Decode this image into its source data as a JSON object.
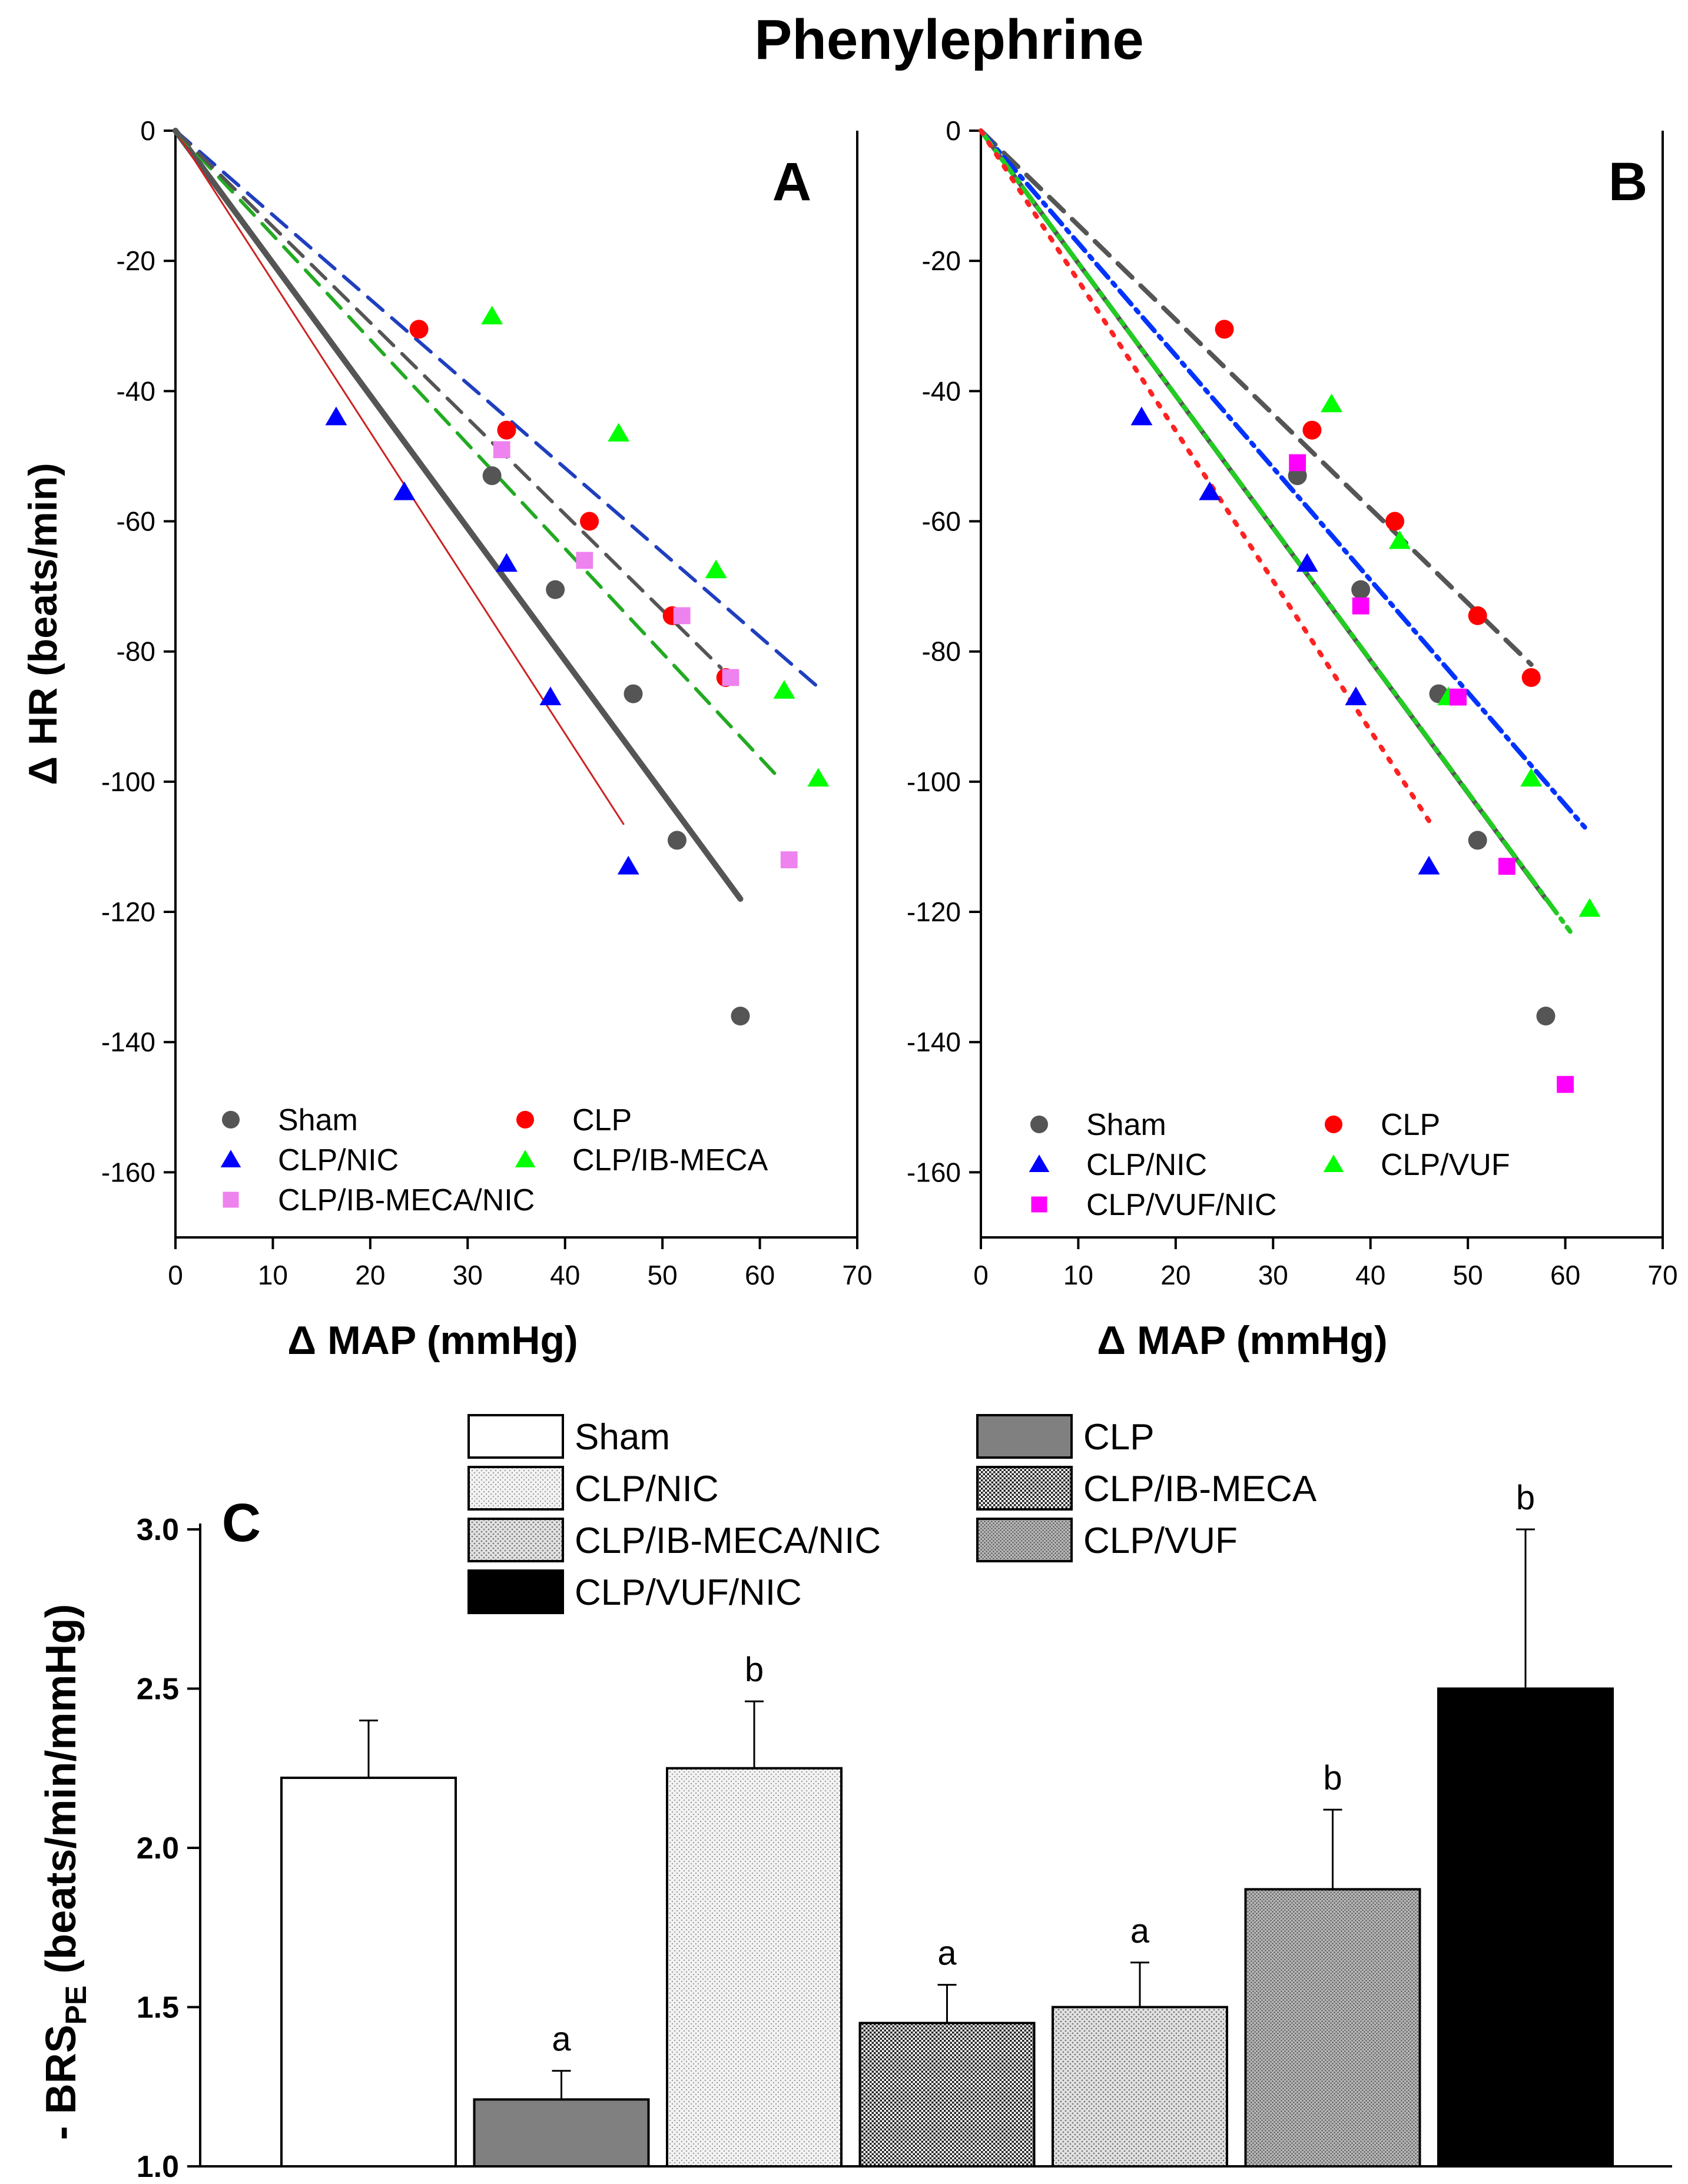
{
  "figure_title": "Phenylephrine",
  "chart_data": [
    {
      "id": "A",
      "panel_label": "A",
      "type": "scatter",
      "xlabel": "Δ MAP (mmHg)",
      "ylabel": "Δ HR (beats/min)",
      "xlim": [
        0,
        70
      ],
      "ylim": [
        -170,
        0
      ],
      "xticks": [
        0,
        10,
        20,
        30,
        40,
        50,
        60,
        70
      ],
      "yticks": [
        0,
        -20,
        -40,
        -60,
        -80,
        -100,
        -120,
        -140,
        -160
      ],
      "legend_position": "bottom-left",
      "series": [
        {
          "name": "Sham",
          "marker": "circle",
          "color": "#555555",
          "points": [
            [
              32.5,
              -53
            ],
            [
              39,
              -70.5
            ],
            [
              47,
              -86.5
            ],
            [
              51.5,
              -109
            ],
            [
              58,
              -136
            ]
          ],
          "fit": {
            "x": [
              0,
              58
            ],
            "y": [
              0,
              -118
            ],
            "color": "#555555",
            "style": "solid",
            "width": 10
          }
        },
        {
          "name": "CLP",
          "marker": "circle",
          "color": "#ff0000",
          "points": [
            [
              25,
              -30.5
            ],
            [
              34,
              -46
            ],
            [
              42.5,
              -60
            ],
            [
              51,
              -74.5
            ],
            [
              56.5,
              -84
            ]
          ],
          "fit": {
            "x": [
              0,
              66
            ],
            "y": [
              0,
              -85.5
            ],
            "color": "#1f3fbf",
            "style": "dashed",
            "width": 6
          }
        },
        {
          "name": "CLP/NIC",
          "marker": "triangle",
          "color": "#0000ff",
          "points": [
            [
              16.5,
              -44
            ],
            [
              23.5,
              -55.5
            ],
            [
              34,
              -66.5
            ],
            [
              38.5,
              -87
            ],
            [
              46.5,
              -113
            ]
          ],
          "fit": {
            "x": [
              0,
              46
            ],
            "y": [
              0,
              -106.5
            ],
            "color": "#cc2222",
            "style": "solid",
            "width": 3
          }
        },
        {
          "name": "CLP/IB-MECA",
          "marker": "triangle",
          "color": "#00ff00",
          "points": [
            [
              32.5,
              -28.5
            ],
            [
              45.5,
              -46.5
            ],
            [
              55.5,
              -67.5
            ],
            [
              62.5,
              -86
            ],
            [
              66,
              -99.5
            ]
          ],
          "fit": {
            "x": [
              0,
              62
            ],
            "y": [
              0,
              -99.5
            ],
            "color": "#22aa22",
            "style": "dashed",
            "width": 6
          }
        },
        {
          "name": "CLP/IB-MECA/NIC",
          "marker": "square",
          "color": "#ee82ee",
          "points": [
            [
              33.5,
              -49
            ],
            [
              42,
              -66
            ],
            [
              52,
              -74.5
            ],
            [
              57,
              -84
            ],
            [
              63,
              -112
            ]
          ],
          "fit": {
            "x": [
              0,
              56
            ],
            "y": [
              0,
              -82.5
            ],
            "color": "#555555",
            "style": "dashed",
            "width": 6
          }
        }
      ]
    },
    {
      "id": "B",
      "panel_label": "B",
      "type": "scatter",
      "xlabel": "Δ MAP (mmHg)",
      "ylabel": "",
      "xlim": [
        0,
        70
      ],
      "ylim": [
        -170,
        0
      ],
      "xticks": [
        0,
        10,
        20,
        30,
        40,
        50,
        60,
        70
      ],
      "yticks": [
        0,
        -20,
        -40,
        -60,
        -80,
        -100,
        -120,
        -140,
        -160
      ],
      "legend_position": "bottom-left",
      "series": [
        {
          "name": "Sham",
          "marker": "circle",
          "color": "#555555",
          "points": [
            [
              32.5,
              -53
            ],
            [
              39,
              -70.5
            ],
            [
              47,
              -86.5
            ],
            [
              51,
              -109
            ],
            [
              58,
              -136
            ]
          ],
          "fit": {
            "x": [
              0,
              58
            ],
            "y": [
              0,
              -118
            ],
            "color": "#555555",
            "style": "solid",
            "width": 8
          }
        },
        {
          "name": "CLP",
          "marker": "circle",
          "color": "#ff0000",
          "points": [
            [
              25,
              -30.5
            ],
            [
              34,
              -46
            ],
            [
              42.5,
              -60
            ],
            [
              51,
              -74.5
            ],
            [
              56.5,
              -84
            ]
          ],
          "fit": {
            "x": [
              0,
              56.5
            ],
            "y": [
              0,
              -82
            ],
            "color": "#555555",
            "style": "dashed",
            "width": 8
          }
        },
        {
          "name": "CLP/NIC",
          "marker": "triangle",
          "color": "#0000ff",
          "points": [
            [
              16.5,
              -44
            ],
            [
              23.5,
              -55.5
            ],
            [
              33.5,
              -66.5
            ],
            [
              38.5,
              -87
            ],
            [
              46,
              -113
            ]
          ],
          "fit": {
            "x": [
              0,
              62
            ],
            "y": [
              0,
              -107
            ],
            "color": "#0033ff",
            "style": "dashdot",
            "width": 8
          }
        },
        {
          "name": "CLP/VUF",
          "marker": "triangle",
          "color": "#00ff00",
          "points": [
            [
              36,
              -42
            ],
            [
              43,
              -63
            ],
            [
              48,
              -87
            ],
            [
              56.5,
              -99.5
            ],
            [
              62.5,
              -119.5
            ]
          ],
          "fit": {
            "x": [
              0,
              60.5
            ],
            "y": [
              0,
              -123
            ],
            "color": "#22cc22",
            "style": "dashdot",
            "width": 8
          }
        },
        {
          "name": "CLP/VUF/NIC",
          "marker": "square",
          "color": "#ff00ff",
          "points": [
            [
              32.5,
              -51
            ],
            [
              39,
              -73
            ],
            [
              49,
              -87
            ],
            [
              54,
              -113
            ],
            [
              60,
              -146.5
            ]
          ],
          "fit": {
            "x": [
              0,
              46
            ],
            "y": [
              0,
              -106
            ],
            "color": "#ff2222",
            "style": "dotted",
            "width": 8
          }
        }
      ]
    },
    {
      "id": "C",
      "panel_label": "C",
      "type": "bar",
      "ylabel": "- BRS",
      "ylabel_sub": "PE",
      "ylabel_suffix": " (beats/min/mmHg)",
      "ylim": [
        1.0,
        3.0
      ],
      "yticks": [
        "1.0",
        "1.5",
        "2.0",
        "2.5",
        "3.0"
      ],
      "legend_position": "top",
      "categories": [
        "Sham",
        "CLP",
        "CLP/NIC",
        "CLP/IB-MECA",
        "CLP/IB-MECA/NIC",
        "CLP/VUF",
        "CLP/VUF/NIC"
      ],
      "values": [
        2.22,
        1.21,
        2.25,
        1.45,
        1.5,
        1.87,
        2.5
      ],
      "errors": [
        0.18,
        0.09,
        0.21,
        0.12,
        0.14,
        0.25,
        0.5
      ],
      "significance": [
        "",
        "a",
        "b",
        "a",
        "a",
        "b",
        "b"
      ],
      "fills": [
        "white",
        "#808080",
        "dots-light",
        "dots-fine",
        "dots-medium",
        "dots-dense",
        "#000000"
      ]
    }
  ]
}
